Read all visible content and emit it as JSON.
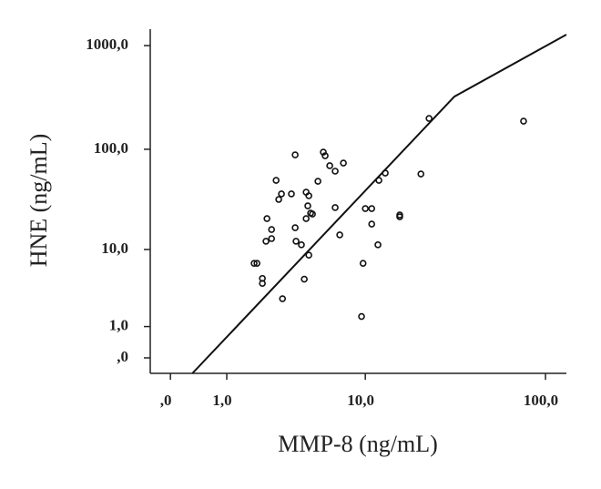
{
  "chart_data": {
    "type": "scatter",
    "x_label": "MMP-8 (ng/mL)",
    "y_label": "HNE (ng/mL)",
    "x_scale": "log1p",
    "y_scale": "log1p",
    "xlim": [
      -0.22,
      129.6
    ],
    "ylim": [
      -0.29,
      1440
    ],
    "xticks": [
      {
        "value": 0,
        "label": ",0"
      },
      {
        "value": 1,
        "label": "1,0"
      },
      {
        "value": 10,
        "label": "10,0"
      },
      {
        "value": 100,
        "label": "100,0"
      }
    ],
    "yticks": [
      {
        "value": 0,
        "label": ",0"
      },
      {
        "value": 1,
        "label": "1,0"
      },
      {
        "value": 10,
        "label": "10,0"
      },
      {
        "value": 100,
        "label": "100,0"
      },
      {
        "value": 1000,
        "label": "1000,0"
      }
    ],
    "color": "#111111",
    "x": [
      1.8,
      1.9,
      2.1,
      2.1,
      2.24,
      2.28,
      2.47,
      2.47,
      2.67,
      2.79,
      2.92,
      2.97,
      3.43,
      3.64,
      3.64,
      3.69,
      4.01,
      4.19,
      4.31,
      4.31,
      4.49,
      4.42,
      4.61,
      4.49,
      4.74,
      5.14,
      5.56,
      5.71,
      6.1,
      6.59,
      6.59,
      7.03,
      7.4,
      9.5,
      9.7,
      10.0,
      10.9,
      10.9,
      11.85,
      12.0,
      13.06,
      15.8,
      15.8,
      20.8,
      23.1,
      76.1
    ],
    "y": [
      7.1,
      7.1,
      4.8,
      4.2,
      12.2,
      20.8,
      13.0,
      16.1,
      49.8,
      32.3,
      36.6,
      2.7,
      36.6,
      88.3,
      16.8,
      12.2,
      11.2,
      4.7,
      38.1,
      20.8,
      35.1,
      27.9,
      23.6,
      8.7,
      23.1,
      48.8,
      93.9,
      86.5,
      69.2,
      61.2,
      26.8,
      14.2,
      73.5,
      1.5,
      7.1,
      26.2,
      26.2,
      18.3,
      11.2,
      49.8,
      58.7,
      22.6,
      21.7,
      57.5,
      199,
      187
    ],
    "fit_line": {
      "x": [
        0.31,
        31.9,
        129.6
      ],
      "y": [
        -0.29,
        323,
        1276
      ]
    }
  }
}
